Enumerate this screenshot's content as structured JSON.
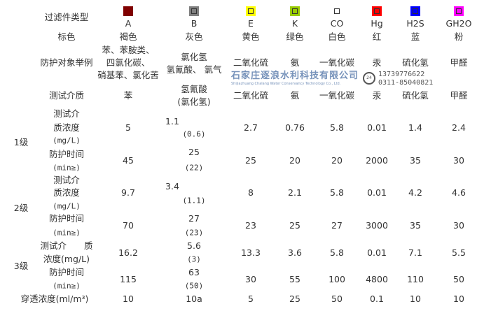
{
  "header": {
    "label": "过滤件类型",
    "types": [
      {
        "code": "A",
        "color": "#800000",
        "color_name": "褐色"
      },
      {
        "code": "B",
        "color": "#7f7f7f",
        "color_name": "灰色"
      },
      {
        "code": "E",
        "color": "#ffff00",
        "color_name": "黄色"
      },
      {
        "code": "K",
        "color": "#99cc00",
        "color_name": "绿色"
      },
      {
        "code": "CO",
        "color": "#ffffff",
        "color_name": "白色"
      },
      {
        "code": "Hg",
        "color": "#ff0000",
        "color_name": "红"
      },
      {
        "code": "H2S",
        "color": "#0000ff",
        "color_name": "蓝"
      },
      {
        "code": "GH2O",
        "color": "#ff00ff",
        "color_name": "粉"
      }
    ]
  },
  "color_row": {
    "label": "标色"
  },
  "protection": {
    "label": "防护对象举例",
    "values": [
      [
        "苯、苯胺类、",
        "四氯化碳、",
        "硝基苯、氯化苦"
      ],
      [
        "氯化氢",
        "氢氰酸、 氯气"
      ],
      [
        "二氧化硫"
      ],
      [
        "氨"
      ],
      [
        "一氧化碳"
      ],
      [
        "汞"
      ],
      [
        "硫化氢"
      ],
      [
        "甲醛"
      ]
    ]
  },
  "test_medium": {
    "label": "测试介质",
    "values": [
      [
        "苯"
      ],
      [
        "氢氰酸",
        "(氯化氢)"
      ],
      [
        "二氧化硫"
      ],
      [
        "氨"
      ],
      [
        "一氧化碳"
      ],
      [
        "汞"
      ],
      [
        "硫化氢"
      ],
      [
        "甲醛"
      ]
    ]
  },
  "levels": [
    {
      "label": "1级",
      "conc_label": [
        "测试介",
        "质浓度",
        "(mg/L)"
      ],
      "conc": [
        [
          "5"
        ],
        [
          "1.1",
          "(0.6)"
        ],
        [
          "2.7"
        ],
        [
          "0.76"
        ],
        [
          "5.8"
        ],
        [
          "0.01"
        ],
        [
          "1.4"
        ],
        [
          "2.4"
        ]
      ],
      "time_label": [
        "防护时间",
        "(min≥)"
      ],
      "time": [
        [
          "45"
        ],
        [
          "25",
          "(22)"
        ],
        [
          "25"
        ],
        [
          "20"
        ],
        [
          "20"
        ],
        [
          "2000"
        ],
        [
          "35"
        ],
        [
          "30"
        ]
      ]
    },
    {
      "label": "2级",
      "conc_label": [
        "测试介",
        "质浓度",
        "(mg/L)"
      ],
      "conc": [
        [
          "9.7"
        ],
        [
          "3.4",
          "(1.1)"
        ],
        [
          "8"
        ],
        [
          "2.1"
        ],
        [
          "5.8"
        ],
        [
          "0.01"
        ],
        [
          "4.2"
        ],
        [
          "4.6"
        ]
      ],
      "time_label": [
        "防护时间",
        "(min≥)"
      ],
      "time": [
        [
          "70"
        ],
        [
          "27",
          "(23)"
        ],
        [
          "23"
        ],
        [
          "25"
        ],
        [
          "27"
        ],
        [
          "3000"
        ],
        [
          "35"
        ],
        [
          "30"
        ]
      ]
    },
    {
      "label": "3级",
      "conc_label": [
        "测试介　　质",
        "浓度(mg/L)"
      ],
      "conc": [
        [
          "16.2"
        ],
        [
          "5.6",
          "(3)"
        ],
        [
          "13.3"
        ],
        [
          "3.6"
        ],
        [
          "5.8"
        ],
        [
          "0.01"
        ],
        [
          "7.1"
        ],
        [
          "5.5"
        ]
      ],
      "time_label": [
        "防护时间",
        "(min≥)"
      ],
      "time": [
        [
          "115"
        ],
        [
          "63",
          "(50)"
        ],
        [
          "30"
        ],
        [
          "55"
        ],
        [
          "100"
        ],
        [
          "4800"
        ],
        [
          "110"
        ],
        [
          "50"
        ]
      ]
    }
  ],
  "penetration": {
    "label": "穿透浓度(ml/m³)",
    "values": [
      "10",
      "10a",
      "5",
      "25",
      "50",
      "0.1",
      "10",
      "10"
    ]
  },
  "watermark": {
    "company": "石家庄逐浪水利科技有限公司",
    "company_en": "Shijiazhuang Chalang Water Conservancy Technology Co., Ltd.",
    "phone1": "13739776622",
    "phone2": "0311-85040821",
    "badge": "24"
  }
}
